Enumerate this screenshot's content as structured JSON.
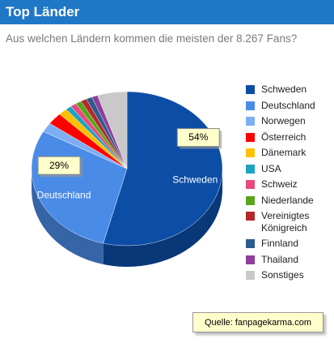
{
  "header": {
    "title": "Top Länder",
    "subtitle": "Aus welchen Ländern kommen die meisten der 8.267 Fans?"
  },
  "chart_data": {
    "type": "pie",
    "categories": [
      "Schweden",
      "Deutschland",
      "Norwegen",
      "Österreich",
      "Dänemark",
      "USA",
      "Schweiz",
      "Niederlande",
      "Vereinigtes Königreich",
      "Finnland",
      "Thailand",
      "Sonstiges"
    ],
    "values": [
      54,
      29,
      2,
      2.5,
      1.5,
      1,
      1,
      1,
      1,
      1,
      1,
      5
    ],
    "value_labels": [
      "54%",
      "29%",
      null,
      null,
      null,
      null,
      null,
      null,
      null,
      null,
      null,
      null
    ],
    "colors": [
      "#0c4ea6",
      "#4a8be8",
      "#7eaef2",
      "#ff0000",
      "#ffc000",
      "#1ea3c3",
      "#e84a7f",
      "#5aa41c",
      "#b3282c",
      "#2c5b8e",
      "#8e3f9e",
      "#c9c9c9"
    ]
  },
  "source": "Quelle: fanpagekarma.com"
}
